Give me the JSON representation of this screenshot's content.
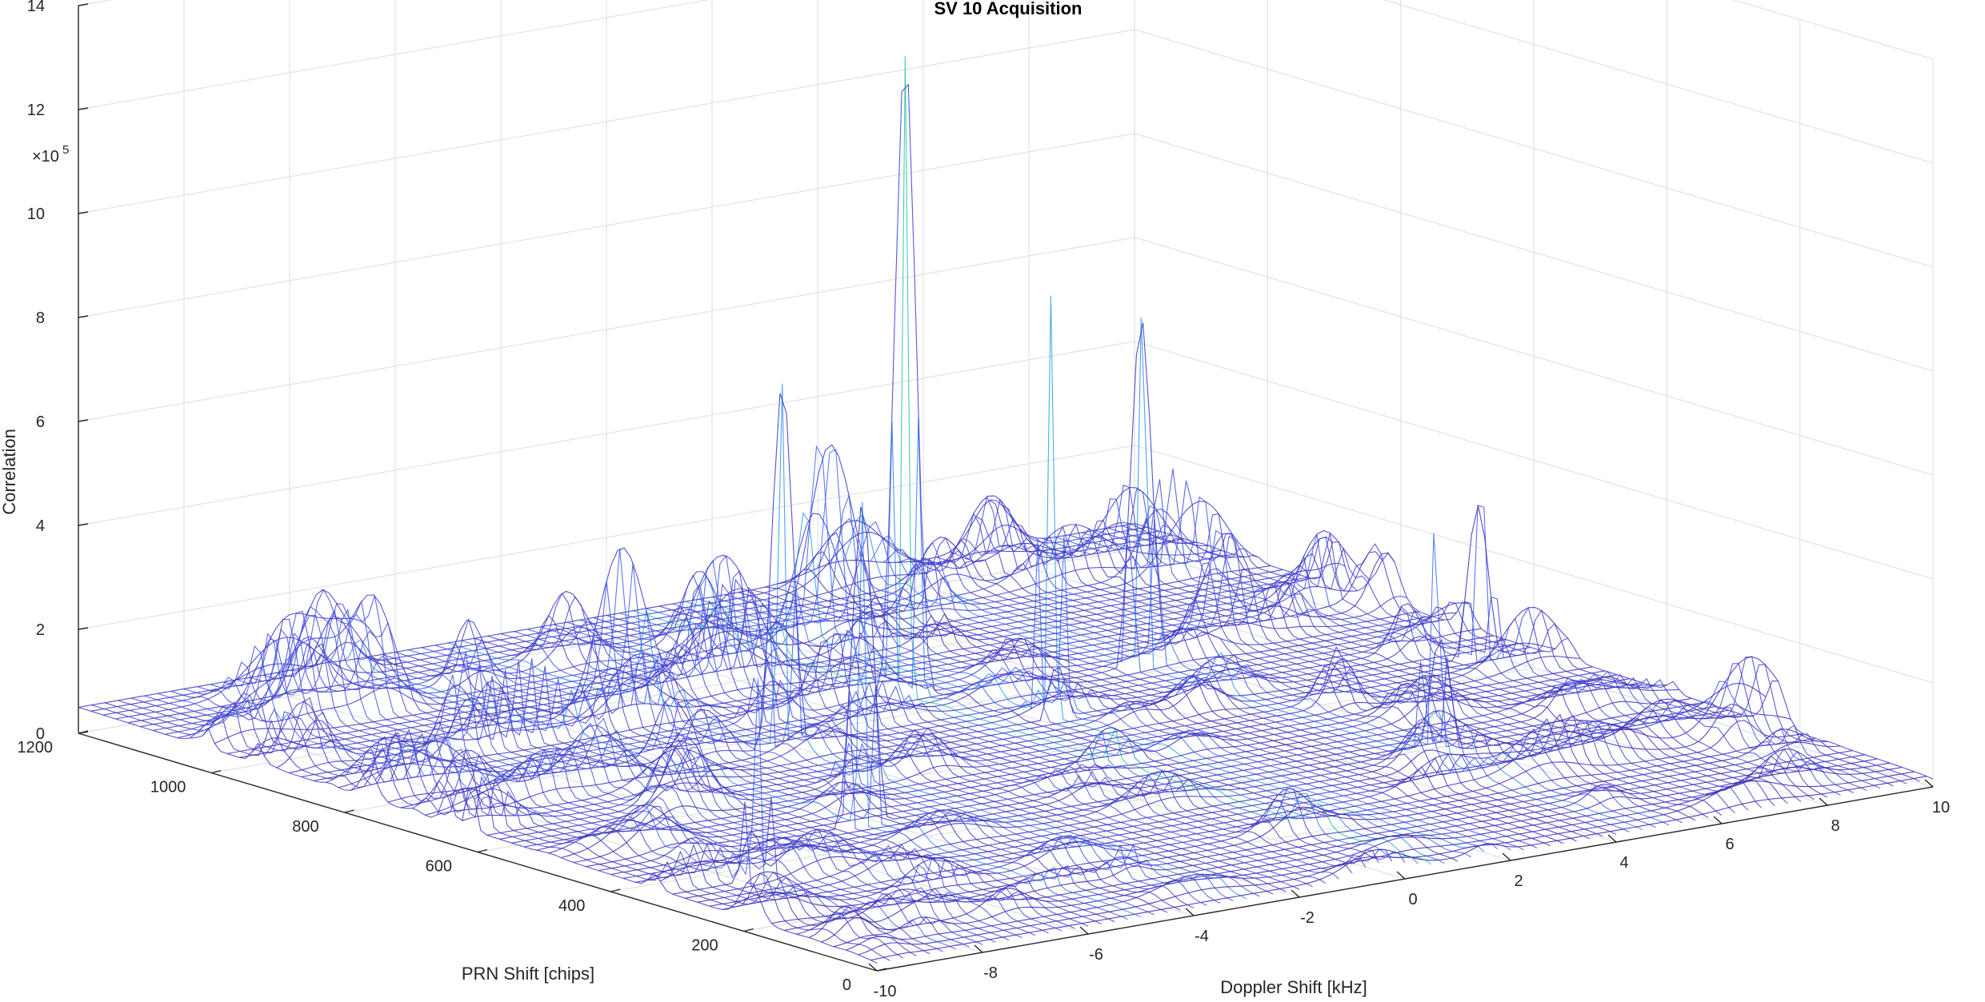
{
  "chart_data": {
    "type": "surface-mesh",
    "title": "SV 10 Acquisition",
    "xlabel": "Doppler Shift [kHz]",
    "ylabel": "PRN Shift [chips]",
    "zlabel": "Correlation",
    "z_exponent_label": "×10",
    "z_exponent": "5",
    "x_ticks": [
      "-10",
      "-8",
      "-6",
      "-4",
      "-2",
      "0",
      "2",
      "4",
      "6",
      "8",
      "10"
    ],
    "y_ticks": [
      "0",
      "200",
      "400",
      "600",
      "800",
      "1000",
      "1200"
    ],
    "z_ticks": [
      "0",
      "2",
      "4",
      "6",
      "8",
      "10",
      "12",
      "14"
    ],
    "xlim": [
      -10,
      10
    ],
    "ylim": [
      0,
      1200
    ],
    "zlim": [
      0,
      1400000
    ],
    "grid": true,
    "colormap": "parula",
    "colormap_stops": [
      "#3e26a8",
      "#4367fd",
      "#2e97ec",
      "#19bfb7",
      "#66cc5d",
      "#d8c124",
      "#f9fb15"
    ],
    "peaks": [
      {
        "doppler_khz": 0.5,
        "prn_chips": 790,
        "correlation": 1290000
      },
      {
        "doppler_khz": 4.5,
        "prn_chips": 750,
        "correlation": 1000000
      },
      {
        "doppler_khz": 1.5,
        "prn_chips": 650,
        "correlation": 880000
      },
      {
        "doppler_khz": -3.0,
        "prn_chips": 700,
        "correlation": 860000
      },
      {
        "doppler_khz": -5.0,
        "prn_chips": 420,
        "correlation": 690000
      },
      {
        "doppler_khz": -8.5,
        "prn_chips": 300,
        "correlation": 490000
      },
      {
        "doppler_khz": 5.0,
        "prn_chips": 350,
        "correlation": 620000
      },
      {
        "doppler_khz": 9.0,
        "prn_chips": 600,
        "correlation": 600000
      }
    ],
    "noise_floor": 300000
  }
}
